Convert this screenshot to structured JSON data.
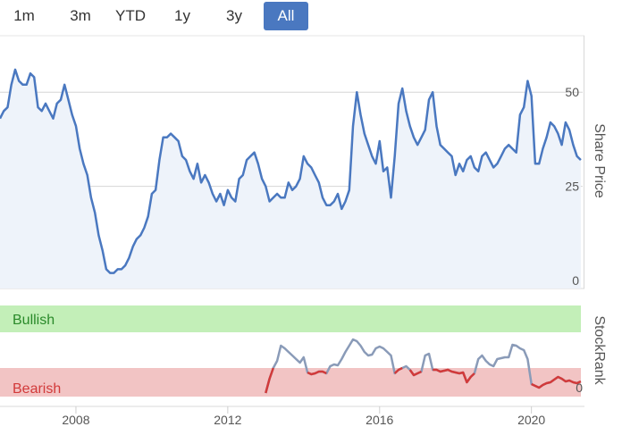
{
  "range_selector": {
    "buttons": [
      {
        "label": "1m",
        "active": false
      },
      {
        "label": "3m",
        "active": false
      },
      {
        "label": "YTD",
        "active": false
      },
      {
        "label": "1y",
        "active": false
      },
      {
        "label": "3y",
        "active": false
      },
      {
        "label": "All",
        "active": true
      }
    ]
  },
  "colors": {
    "price_line": "#4a78c0",
    "price_fill": "#eef3fa",
    "rank_line": "#8a9bb8",
    "rank_bearish_line": "#d23a3a",
    "bullish_band": "#c3efb8",
    "bullish_text": "#2a8a2a",
    "bearish_band": "#f2c4c4",
    "bearish_text": "#d23a3a",
    "active_button": "#4a78c0"
  },
  "chart_data": [
    {
      "type": "area",
      "ylabel": "Share Price",
      "y_ticks": [
        "0",
        "25",
        "50"
      ],
      "ylim": [
        0,
        65
      ],
      "xlim": [
        2006.0,
        2021.35
      ],
      "grid": true,
      "series": [
        {
          "x": [
            2006.0,
            2006.1,
            2006.2,
            2006.3,
            2006.4,
            2006.5,
            2006.6,
            2006.7,
            2006.8,
            2006.9,
            2007.0,
            2007.1,
            2007.2,
            2007.3,
            2007.4,
            2007.5,
            2007.6,
            2007.7,
            2007.8,
            2007.9,
            2008.0,
            2008.1,
            2008.2,
            2008.3,
            2008.4,
            2008.5,
            2008.6,
            2008.7,
            2008.8,
            2008.9,
            2009.0,
            2009.1,
            2009.2,
            2009.3,
            2009.4,
            2009.5,
            2009.6,
            2009.7,
            2009.8,
            2009.9,
            2010.0,
            2010.1,
            2010.2,
            2010.3,
            2010.4,
            2010.5,
            2010.6,
            2010.7,
            2010.8,
            2010.9,
            2011.0,
            2011.1,
            2011.2,
            2011.3,
            2011.4,
            2011.5,
            2011.6,
            2011.7,
            2011.8,
            2011.9,
            2012.0,
            2012.1,
            2012.2,
            2012.3,
            2012.4,
            2012.5,
            2012.6,
            2012.7,
            2012.8,
            2012.9,
            2013.0,
            2013.1,
            2013.2,
            2013.3,
            2013.4,
            2013.5,
            2013.6,
            2013.7,
            2013.8,
            2013.9,
            2014.0,
            2014.1,
            2014.2,
            2014.3,
            2014.4,
            2014.5,
            2014.6,
            2014.7,
            2014.8,
            2014.9,
            2015.0,
            2015.1,
            2015.2,
            2015.3,
            2015.4,
            2015.5,
            2015.6,
            2015.7,
            2015.8,
            2015.9,
            2016.0,
            2016.1,
            2016.2,
            2016.3,
            2016.4,
            2016.5,
            2016.6,
            2016.7,
            2016.8,
            2016.9,
            2017.0,
            2017.1,
            2017.2,
            2017.3,
            2017.4,
            2017.5,
            2017.6,
            2017.7,
            2017.8,
            2017.9,
            2018.0,
            2018.1,
            2018.2,
            2018.3,
            2018.4,
            2018.5,
            2018.6,
            2018.7,
            2018.8,
            2018.9,
            2019.0,
            2019.1,
            2019.2,
            2019.3,
            2019.4,
            2019.5,
            2019.6,
            2019.7,
            2019.8,
            2019.9,
            2020.0,
            2020.1,
            2020.2,
            2020.3,
            2020.4,
            2020.5,
            2020.6,
            2020.7,
            2020.8,
            2020.9,
            2021.0,
            2021.1,
            2021.2,
            2021.3
          ],
          "values": [
            43,
            45,
            46,
            52,
            56,
            53,
            52,
            52,
            55,
            54,
            46,
            45,
            47,
            45,
            43,
            47,
            48,
            52,
            48,
            44,
            41,
            35,
            31,
            28,
            22,
            18,
            12,
            8,
            3,
            2,
            2,
            3,
            3,
            4,
            6,
            9,
            11,
            12,
            14,
            17,
            23,
            24,
            32,
            38,
            38,
            39,
            38,
            37,
            33,
            32,
            29,
            27,
            31,
            26,
            28,
            26,
            23,
            21,
            23,
            20,
            24,
            22,
            21,
            27,
            28,
            32,
            33,
            34,
            31,
            27,
            25,
            21,
            22,
            23,
            22,
            22,
            26,
            24,
            25,
            27,
            33,
            31,
            30,
            28,
            26,
            22,
            20,
            20,
            21,
            23,
            19,
            21,
            24,
            41,
            50,
            44,
            39,
            36,
            33,
            31,
            37,
            29,
            30,
            22,
            33,
            47,
            51,
            45,
            41,
            38,
            36,
            38,
            40,
            48,
            50,
            41,
            36,
            35,
            34,
            33,
            28,
            31,
            29,
            32,
            33,
            30,
            29,
            33,
            34,
            32,
            30,
            31,
            33,
            35,
            36,
            35,
            34,
            44,
            46,
            53,
            49,
            31,
            31,
            35,
            38,
            42,
            41,
            39,
            36,
            42,
            40,
            36,
            33,
            32
          ]
        }
      ]
    },
    {
      "type": "line",
      "ylabel": "StockRank",
      "y_ticks": [
        "0"
      ],
      "ylim": [
        0,
        100
      ],
      "xlim": [
        2006.0,
        2021.35
      ],
      "bands": [
        {
          "label": "Bullish",
          "from": 70,
          "to": 100
        },
        {
          "label": "Bearish",
          "from": 0,
          "to": 30
        }
      ],
      "x_ticks": [
        "2008",
        "2012",
        "2016",
        "2020"
      ],
      "series": [
        {
          "x": [
            2013.0,
            2013.1,
            2013.2,
            2013.3,
            2013.4,
            2013.5,
            2013.6,
            2013.7,
            2013.8,
            2013.9,
            2014.0,
            2014.1,
            2014.2,
            2014.3,
            2014.4,
            2014.5,
            2014.6,
            2014.7,
            2014.8,
            2014.9,
            2015.0,
            2015.1,
            2015.2,
            2015.3,
            2015.4,
            2015.5,
            2015.6,
            2015.7,
            2015.8,
            2015.9,
            2016.0,
            2016.1,
            2016.2,
            2016.3,
            2016.4,
            2016.5,
            2016.6,
            2016.7,
            2016.8,
            2016.9,
            2017.0,
            2017.1,
            2017.2,
            2017.3,
            2017.4,
            2017.5,
            2017.6,
            2017.7,
            2017.8,
            2017.9,
            2018.0,
            2018.1,
            2018.2,
            2018.3,
            2018.4,
            2018.5,
            2018.6,
            2018.7,
            2018.8,
            2018.9,
            2019.0,
            2019.1,
            2019.2,
            2019.3,
            2019.4,
            2019.5,
            2019.6,
            2019.7,
            2019.8,
            2019.9,
            2020.0,
            2020.1,
            2020.2,
            2020.3,
            2020.4,
            2020.5,
            2020.6,
            2020.7,
            2020.8,
            2020.9,
            2021.0,
            2021.1,
            2021.2,
            2021.3
          ],
          "values": [
            2,
            18,
            30,
            38,
            55,
            52,
            48,
            44,
            40,
            36,
            42,
            25,
            23,
            24,
            26,
            26,
            24,
            32,
            34,
            33,
            40,
            48,
            55,
            62,
            60,
            55,
            48,
            44,
            45,
            52,
            54,
            52,
            48,
            44,
            24,
            28,
            30,
            32,
            28,
            22,
            24,
            26,
            44,
            46,
            28,
            28,
            26,
            27,
            28,
            26,
            25,
            24,
            25,
            14,
            20,
            24,
            40,
            44,
            38,
            34,
            32,
            40,
            41,
            42,
            42,
            56,
            55,
            52,
            50,
            40,
            12,
            10,
            8,
            11,
            13,
            14,
            17,
            20,
            18,
            15,
            16,
            14,
            13,
            15
          ]
        }
      ]
    }
  ]
}
